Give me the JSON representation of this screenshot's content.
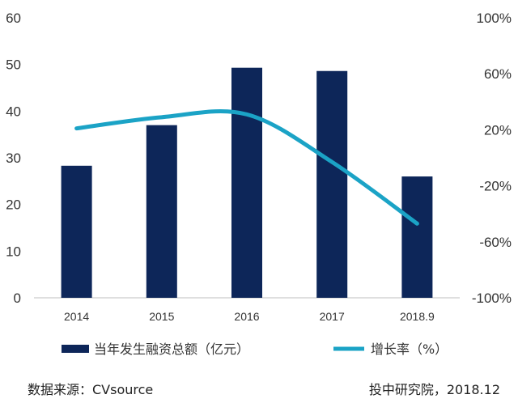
{
  "chart_data": {
    "type": "bar",
    "categories": [
      "2014",
      "2015",
      "2016",
      "2017",
      "2018.9"
    ],
    "series": [
      {
        "name": "当年发生融资总额（亿元）",
        "type": "bar",
        "axis": "left",
        "color": "#0d2659",
        "values": [
          28.3,
          37.0,
          49.3,
          48.6,
          26.0
        ]
      },
      {
        "name": "增长率（%）",
        "type": "line",
        "axis": "right",
        "color": "#1ba3c6",
        "values": [
          21,
          29,
          31,
          -3,
          -47
        ]
      }
    ],
    "y_left": {
      "min": 0,
      "max": 60,
      "ticks": [
        "0",
        "10",
        "20",
        "30",
        "40",
        "50",
        "60"
      ]
    },
    "y_right": {
      "min": -100,
      "max": 100,
      "ticks": [
        "-100%",
        "-60%",
        "-20%",
        "20%",
        "60%",
        "100%"
      ]
    },
    "legend_position": "bottom",
    "grid": false
  },
  "footer": {
    "source": "数据来源：CVsource",
    "credit": "投中研究院，2018.12"
  }
}
